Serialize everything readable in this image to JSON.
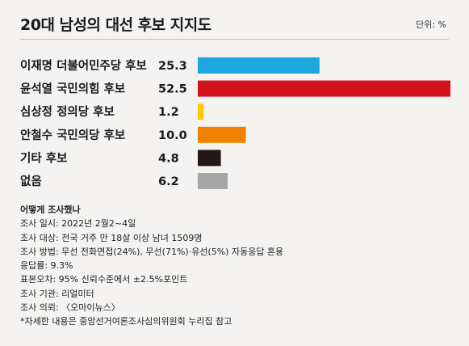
{
  "title": "20대 남성의 대선 후보 지지도",
  "unit": "단위: %",
  "chart_data": {
    "type": "bar",
    "orientation": "horizontal",
    "title": "20대 남성의 대선 후보 지지도",
    "categories": [
      "이재명 더불어민주당 후보",
      "윤석열 국민의힘 후보",
      "심상정 정의당 후보",
      "안철수 국민의당 후보",
      "기타 후보",
      "없음"
    ],
    "values": [
      25.3,
      52.5,
      1.2,
      10.0,
      4.8,
      6.2
    ],
    "value_labels": [
      "25.3",
      "52.5",
      "1.2",
      "10.0",
      "4.8",
      "6.2"
    ],
    "colors": [
      "#1ea6e0",
      "#d4121c",
      "#ffc800",
      "#f08200",
      "#231815",
      "#a6a6a6"
    ],
    "xlim": [
      0,
      52.5
    ],
    "grid": false,
    "legend": "none"
  },
  "notes": {
    "heading": "어떻게 조사했나",
    "lines": [
      "조사 일시: 2022년 2월2~4일",
      "조사 대상: 전국 거주 만 18살 이상 남녀 1509명",
      "조사 방법: 무선 전화면접(24%), 무선(71%)·유선(5%) 자동응답 혼용",
      "응답률: 9.3%",
      "표본오차: 95% 신뢰수준에서 ±2.5%포인트",
      "조사 기관: 리얼미터",
      "조사 의뢰: 〈오마이뉴스〉",
      "*자세한 내용은 중앙선거여론조사심의위원회 누리집 참고"
    ]
  }
}
